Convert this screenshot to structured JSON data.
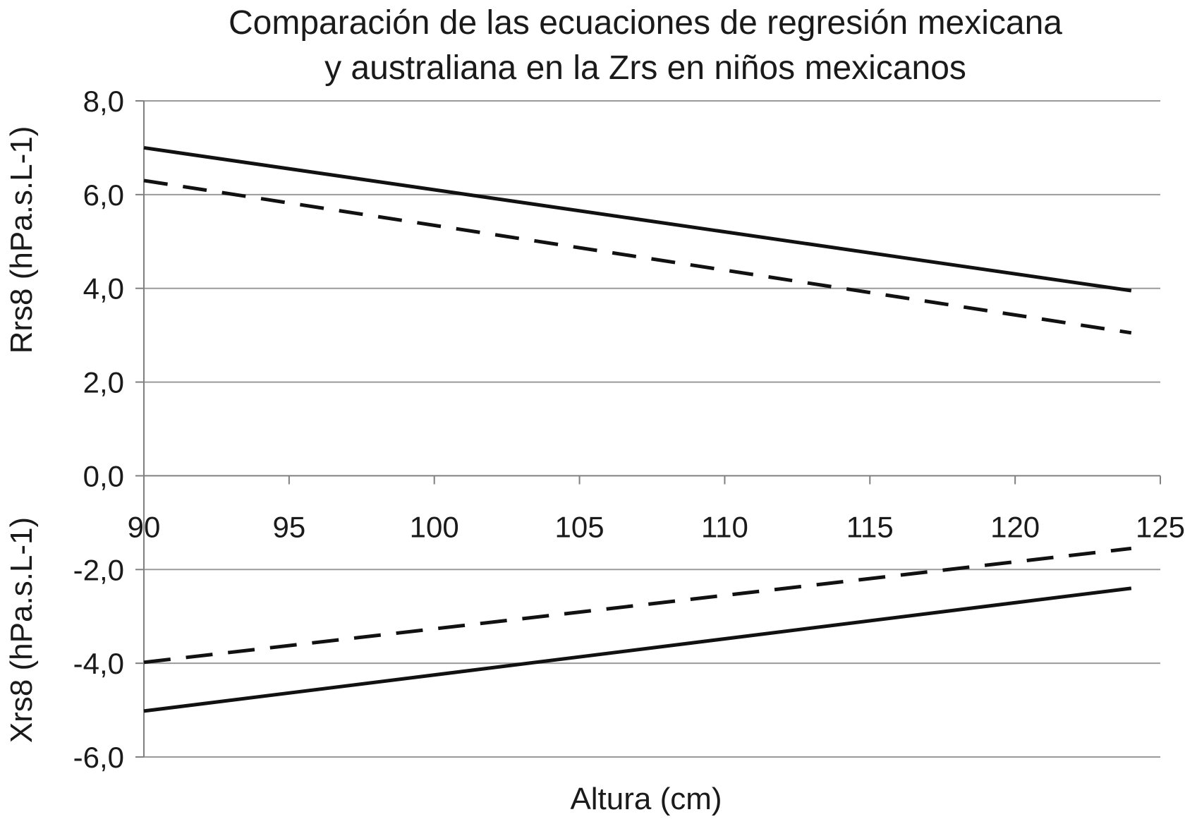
{
  "chart_data": {
    "type": "line",
    "title": [
      "Comparación de las ecuaciones de regresión mexicana",
      "y australiana en la Zrs en niños mexicanos"
    ],
    "xlabel": "Altura (cm)",
    "ylabel_top": "Rrs8 (hPa.s.L-1)",
    "ylabel_bottom": "Xrs8 (hPa.s.L-1)",
    "xlim": [
      90,
      125
    ],
    "ylim": [
      -6.0,
      8.0
    ],
    "x_ticks": [
      "90",
      "95",
      "100",
      "105",
      "110",
      "115",
      "120",
      "125"
    ],
    "y_ticks": [
      "8,0",
      "6,0",
      "4,0",
      "2,0",
      "0,0",
      "-2,0",
      "-4,0",
      "-6,0"
    ],
    "y_tick_values": [
      8,
      6,
      4,
      2,
      0,
      -2,
      -4,
      -6
    ],
    "grid": true,
    "legend": "none",
    "series": [
      {
        "style": "solid",
        "x": [
          90,
          124
        ],
        "y": [
          7.0,
          3.95
        ]
      },
      {
        "style": "dashed",
        "x": [
          90,
          124
        ],
        "y": [
          6.3,
          3.05
        ]
      },
      {
        "style": "dashed-bold",
        "x": [
          90,
          124
        ],
        "y": [
          -3.98,
          -1.55
        ]
      },
      {
        "style": "solid",
        "x": [
          90,
          124
        ],
        "y": [
          -5.02,
          -2.4
        ]
      }
    ]
  }
}
